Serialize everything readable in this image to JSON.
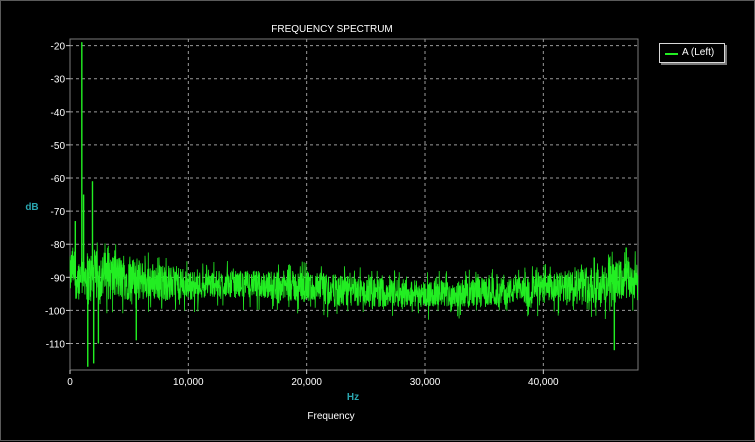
{
  "chart_data": {
    "type": "line",
    "title": "FREQUENCY SPECTRUM",
    "xlabel": "Frequency",
    "xunit": "Hz",
    "ylabel": "dB",
    "xlim": [
      0,
      48000
    ],
    "ylim": [
      -118,
      -18
    ],
    "x_ticks": [
      0,
      10000,
      20000,
      30000,
      40000
    ],
    "x_tick_labels": [
      "0",
      "10,000",
      "20,000",
      "30,000",
      "40,000"
    ],
    "y_ticks": [
      -20,
      -30,
      -40,
      -50,
      -60,
      -70,
      -80,
      -90,
      -100,
      -110
    ],
    "y_tick_labels": [
      "-20",
      "-30",
      "-40",
      "-50",
      "-60",
      "-70",
      "-80",
      "-90",
      "-100",
      "-110"
    ],
    "grid": true,
    "legend_position": "top-right",
    "series": [
      {
        "name": "A (Left)",
        "color": "#22ee22",
        "envelope_x": [
          0,
          200,
          500,
          800,
          1000,
          1200,
          1600,
          2000,
          2500,
          3000,
          4000,
          5000,
          6000,
          8000,
          10000,
          12000,
          15000,
          18000,
          20000,
          22000,
          25000,
          28000,
          30000,
          32000,
          35000,
          38000,
          40000,
          42000,
          43000,
          44000,
          45000,
          46000,
          47000,
          48000
        ],
        "envelope_low": [
          -96,
          -93,
          -97,
          -95,
          -92,
          -95,
          -99,
          -97,
          -97,
          -97,
          -97,
          -97,
          -97,
          -97,
          -97,
          -96,
          -96,
          -97,
          -98,
          -99,
          -99,
          -99,
          -99,
          -99,
          -99,
          -98,
          -98,
          -98,
          -97,
          -98,
          -99,
          -98,
          -97,
          -97
        ],
        "envelope_high": [
          -84,
          -80,
          -85,
          -84,
          -82,
          -82,
          -82,
          -82,
          -82,
          -82,
          -83,
          -84,
          -85,
          -86,
          -88,
          -88,
          -88,
          -88,
          -88,
          -89,
          -90,
          -90,
          -91,
          -91,
          -90,
          -90,
          -89,
          -88,
          -87,
          -86,
          -86,
          -85,
          -85,
          -85
        ],
        "peaks": [
          {
            "x": 1000,
            "y": -19
          },
          {
            "x": 1150,
            "y": -65
          },
          {
            "x": 1900,
            "y": -61
          },
          {
            "x": 450,
            "y": -73
          },
          {
            "x": 1500,
            "y": -117
          },
          {
            "x": 2000,
            "y": -116
          },
          {
            "x": 2400,
            "y": -110
          },
          {
            "x": 5600,
            "y": -109
          },
          {
            "x": 46000,
            "y": -112
          },
          {
            "x": 47000,
            "y": -81
          },
          {
            "x": 44300,
            "y": -84
          }
        ]
      }
    ]
  }
}
